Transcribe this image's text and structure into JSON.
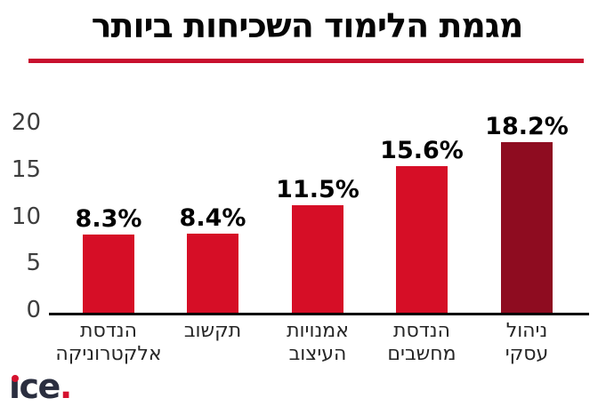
{
  "title": "מגמת הלימוד השכיחות ביותר",
  "brand": {
    "text": "ice",
    "dot": ".",
    "text_color": "#2A2E3F",
    "accent_color": "#D5112E"
  },
  "colors": {
    "bar": "#D60E26",
    "bar_highlight": "#8E0C20",
    "title_underline": "#C8102E",
    "axis": "#000000",
    "tick_label": "#3D3D3D",
    "category_label": "#262626"
  },
  "chart_data": {
    "type": "bar",
    "title": "מגמת הלימוד השכיחות ביותר",
    "categories": [
      "הנדסת אלקטרוניקה",
      "תקשוב",
      "אמנויות העיצוב",
      "הנדסת מחשבים",
      "ניהול עסקי"
    ],
    "category_lines": [
      [
        "הנדסת",
        "אלקטרוניקה"
      ],
      [
        "תקשוב"
      ],
      [
        "אמנויות",
        "העיצוב"
      ],
      [
        "הנדסת",
        "מחשבים"
      ],
      [
        "ניהול",
        "עסקי"
      ]
    ],
    "values": [
      8.3,
      8.4,
      11.5,
      15.6,
      18.2
    ],
    "value_labels": [
      "8.3%",
      "8.4%",
      "11.5%",
      "15.6%",
      "18.2%"
    ],
    "highlighted_index": 4,
    "yticks": [
      0,
      5,
      10,
      15,
      20
    ],
    "ylim": [
      0,
      20
    ],
    "grid": false,
    "legend": false,
    "direction": "rtl",
    "note": "bars displayed left-to-right in ascending value order"
  }
}
